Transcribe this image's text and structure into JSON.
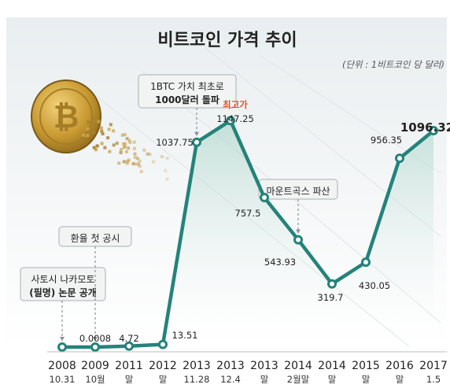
{
  "chart_data": {
    "type": "line",
    "title": "비트코인 가격 추이",
    "unit_note": "(단위 : 1비트코인 당 달러)",
    "xlabel": "",
    "ylabel": "",
    "grid": false,
    "categories": [
      {
        "year": "2008",
        "sub": "10.31"
      },
      {
        "year": "2009",
        "sub": "10월"
      },
      {
        "year": "2011",
        "sub": "말"
      },
      {
        "year": "2012",
        "sub": "말"
      },
      {
        "year": "2013",
        "sub": "11.28"
      },
      {
        "year": "2013",
        "sub": "12.4"
      },
      {
        "year": "2013",
        "sub": "말"
      },
      {
        "year": "2014",
        "sub": "2월말"
      },
      {
        "year": "2014",
        "sub": "말"
      },
      {
        "year": "2015",
        "sub": "말"
      },
      {
        "year": "2016",
        "sub": "말"
      },
      {
        "year": "2017",
        "sub": "1.5"
      }
    ],
    "values": [
      0,
      0.0008,
      4.72,
      13.51,
      1037.75,
      1147.25,
      757.5,
      543.93,
      319.7,
      430.05,
      956.35,
      1096.32
    ],
    "value_labels": [
      "",
      "0.0008",
      "4.72",
      "13.51",
      "1037.75",
      "1147.25",
      "757.5",
      "543.93",
      "319.7",
      "430.05",
      "956.35",
      "1096.32"
    ],
    "ylim": [
      0,
      1200
    ],
    "colors": {
      "line": "#23837a",
      "marker_fill": "#ffffff",
      "accent": "#e0522a"
    },
    "annotations": [
      {
        "target": 0,
        "lines": [
          "사토시 나카모토",
          "(필명) 논문 공개"
        ]
      },
      {
        "target": 1,
        "lines": [
          "환율 첫 공시"
        ]
      },
      {
        "target": 4,
        "lines": [
          "1BTC 가치 최초로",
          "1000달러 돌파"
        ]
      },
      {
        "target": 7,
        "lines": [
          "마운트곡스 파산"
        ]
      }
    ],
    "peak_label": {
      "target": 5,
      "text": "최고가"
    }
  }
}
